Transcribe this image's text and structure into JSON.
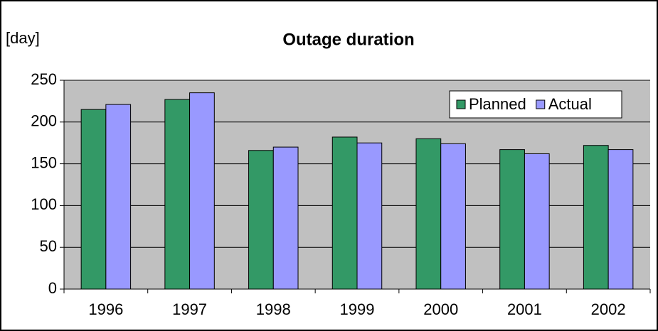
{
  "chart_data": {
    "type": "bar",
    "title": "Outage duration",
    "y_label": "[day]",
    "categories": [
      "1996",
      "1997",
      "1998",
      "1999",
      "2000",
      "2001",
      "2002"
    ],
    "series": [
      {
        "name": "Planned",
        "color": "#339966",
        "values": [
          215,
          227,
          166,
          182,
          180,
          167,
          172
        ]
      },
      {
        "name": "Actual",
        "color": "#9999ff",
        "values": [
          221,
          235,
          170,
          175,
          174,
          162,
          167
        ]
      }
    ],
    "ylim": [
      0,
      250
    ],
    "yticks": [
      0,
      50,
      100,
      150,
      200,
      250
    ],
    "grid": true,
    "legend": "top-right"
  }
}
